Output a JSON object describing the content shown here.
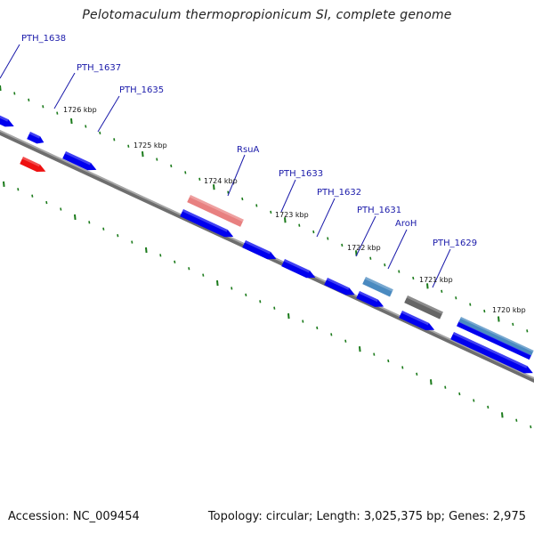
{
  "title": "Pelotomaculum thermopropionicum SI, complete genome",
  "footer": {
    "accession": "Accession: NC_009454",
    "topology": "Topology: circular; Length: 3,025,375 bp; Genes: 2,975"
  },
  "gene_labels": [
    "PTH_1638",
    "PTH_1637",
    "PTH_1635",
    "RsuA",
    "PTH_1633",
    "PTH_1632",
    "PTH_1631",
    "AroH",
    "PTH_1629"
  ],
  "kbp_labels": [
    "1726 kbp",
    "1725 kbp",
    "1724 kbp",
    "1723 kbp",
    "1722 kbp",
    "1721 kbp",
    "1720 kbp"
  ],
  "colors": {
    "backbone": "#8a8a8a",
    "forward_gene": "#0000ee",
    "highlight_red": "#ee1111",
    "highlight_pink": "#e88080",
    "highlight_steel": "#4a8ac0",
    "highlight_gray": "#666666",
    "ticks": "#1a7a1a",
    "label_line": "#1a1aaa"
  }
}
